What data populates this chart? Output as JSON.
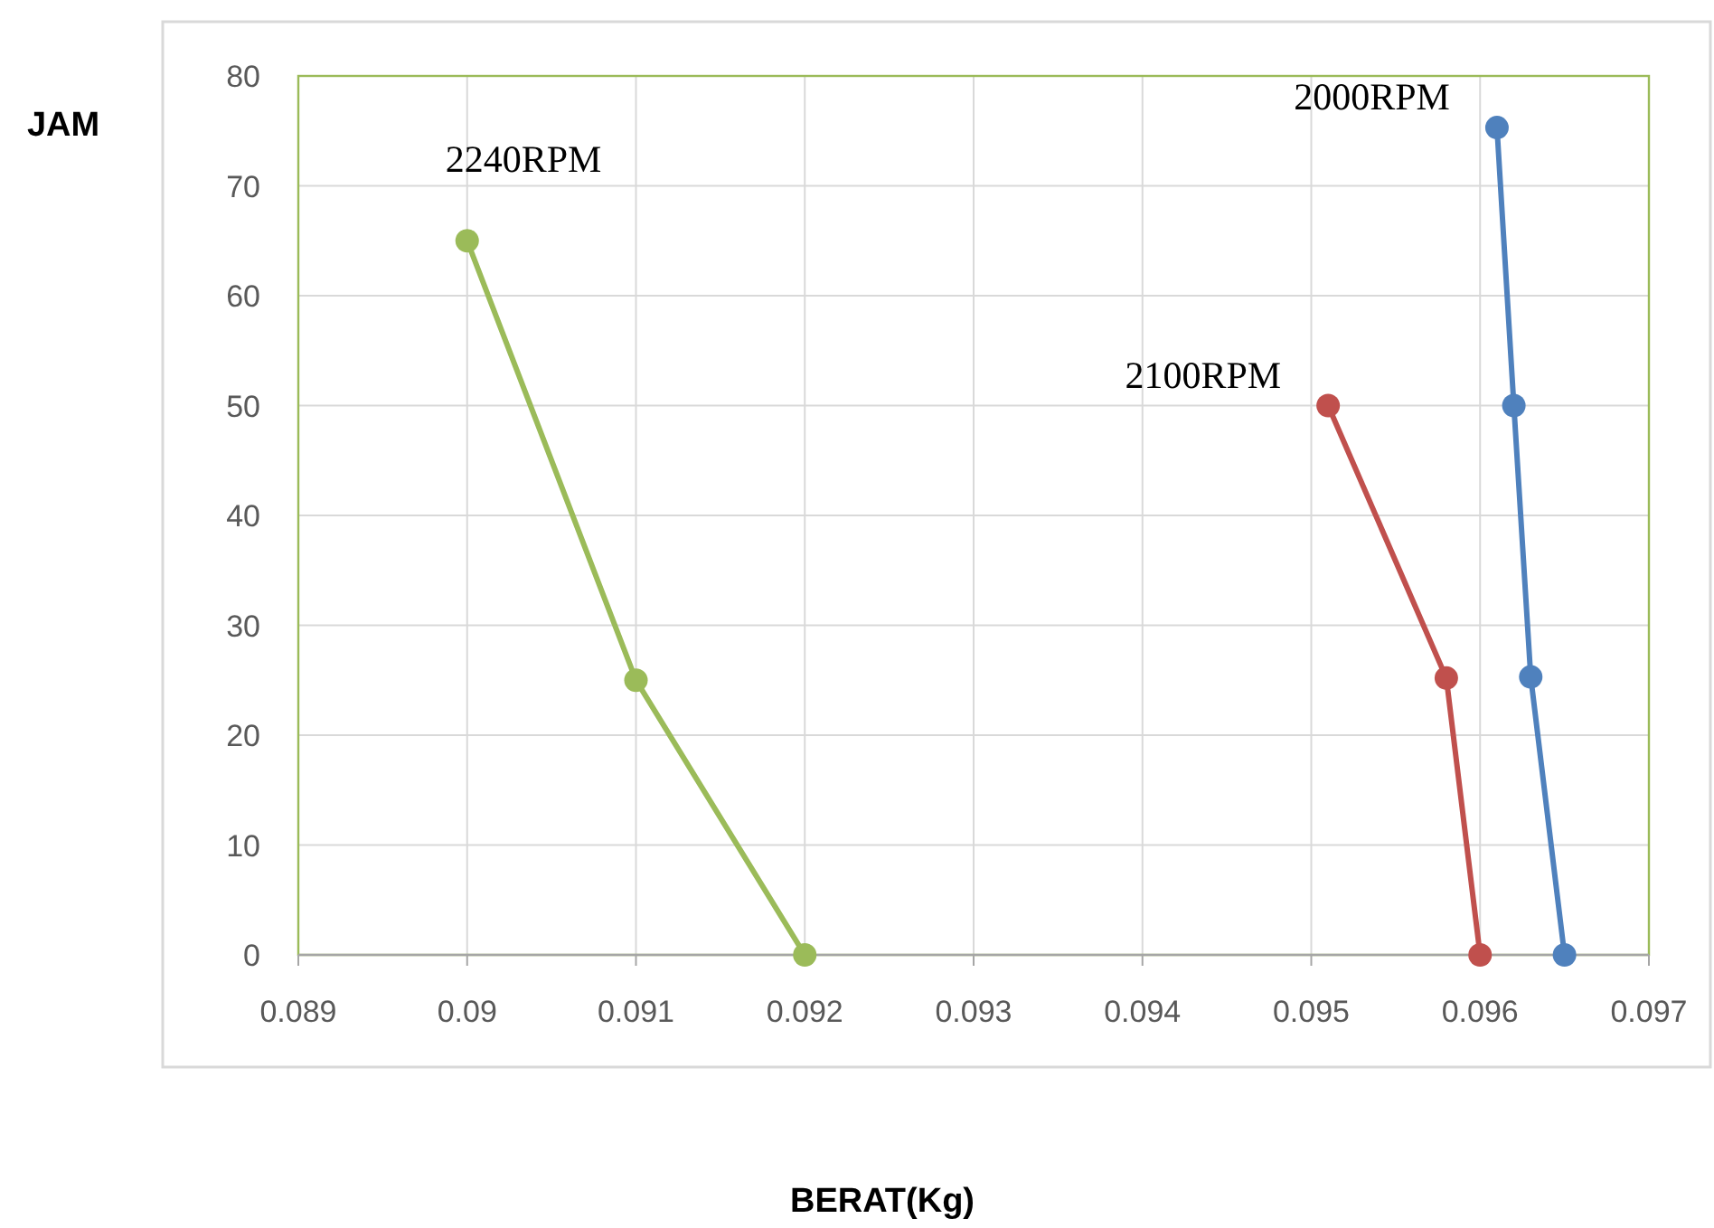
{
  "chart_data": {
    "type": "line",
    "xlabel": "BERAT(Kg)",
    "ylabel": "JAM",
    "xlim": [
      0.089,
      0.097
    ],
    "xticks": [
      0.089,
      0.09,
      0.091,
      0.092,
      0.093,
      0.094,
      0.095,
      0.096,
      0.097
    ],
    "ylim": [
      0,
      80
    ],
    "yticks": [
      0,
      10,
      20,
      30,
      40,
      50,
      60,
      70,
      80
    ],
    "grid": true,
    "marker": "circle",
    "line_style": "solid",
    "series": [
      {
        "name": "2240RPM",
        "color": "#9bbb59",
        "x": [
          0.09,
          0.091,
          0.092
        ],
        "values": [
          65,
          25,
          0
        ]
      },
      {
        "name": "2100RPM",
        "color": "#c0504d",
        "x": [
          0.0951,
          0.0958,
          0.096
        ],
        "values": [
          50,
          25.2,
          0
        ]
      },
      {
        "name": "2000RPM",
        "color": "#4f81bd",
        "x": [
          0.0961,
          0.0962,
          0.0963,
          0.0965
        ],
        "values": [
          75.3,
          50,
          25.3,
          0
        ]
      }
    ]
  }
}
